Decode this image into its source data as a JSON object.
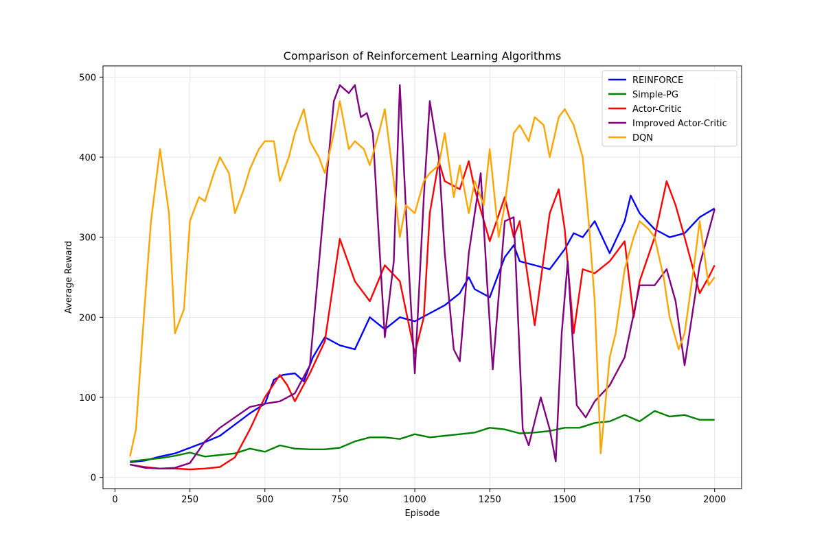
{
  "chart_data": {
    "type": "line",
    "title": "Comparison of Reinforcement Learning Algorithms",
    "xlabel": "Episode",
    "ylabel": "Average Reward",
    "xlim": [
      -40,
      2090
    ],
    "ylim": [
      -14,
      514
    ],
    "xticks": [
      0,
      250,
      500,
      750,
      1000,
      1250,
      1500,
      1750,
      2000
    ],
    "yticks": [
      0,
      100,
      200,
      300,
      400,
      500
    ],
    "grid": true,
    "legend_position": "top-right",
    "series": [
      {
        "name": "REINFORCE",
        "color": "#0000ff",
        "x": [
          50,
          100,
          150,
          200,
          250,
          300,
          350,
          400,
          450,
          500,
          530,
          560,
          600,
          630,
          660,
          700,
          750,
          800,
          850,
          900,
          950,
          1000,
          1050,
          1100,
          1150,
          1180,
          1200,
          1250,
          1300,
          1330,
          1350,
          1400,
          1450,
          1500,
          1530,
          1560,
          1600,
          1650,
          1700,
          1720,
          1750,
          1800,
          1850,
          1900,
          1950,
          2000
        ],
        "y": [
          19,
          21,
          26,
          30,
          37,
          44,
          52,
          66,
          80,
          92,
          122,
          128,
          130,
          120,
          150,
          175,
          165,
          160,
          200,
          185,
          200,
          195,
          205,
          215,
          230,
          250,
          235,
          225,
          275,
          290,
          270,
          265,
          260,
          285,
          305,
          300,
          320,
          280,
          320,
          352,
          330,
          310,
          300,
          305,
          325,
          336
        ]
      },
      {
        "name": "Simple-PG",
        "color": "#008000",
        "x": [
          50,
          100,
          150,
          200,
          250,
          300,
          350,
          400,
          450,
          500,
          550,
          600,
          650,
          700,
          750,
          800,
          850,
          900,
          950,
          1000,
          1050,
          1100,
          1150,
          1200,
          1250,
          1300,
          1350,
          1400,
          1450,
          1500,
          1550,
          1600,
          1650,
          1700,
          1750,
          1800,
          1850,
          1900,
          1950,
          2000
        ],
        "y": [
          20,
          22,
          24,
          27,
          31,
          26,
          28,
          30,
          36,
          32,
          40,
          36,
          35,
          35,
          37,
          45,
          50,
          50,
          48,
          54,
          50,
          52,
          54,
          56,
          62,
          60,
          55,
          56,
          58,
          62,
          62,
          68,
          70,
          78,
          70,
          83,
          76,
          78,
          72,
          72
        ]
      },
      {
        "name": "Actor-Critic",
        "color": "#ff0000",
        "x": [
          50,
          100,
          150,
          200,
          250,
          300,
          350,
          400,
          450,
          500,
          550,
          575,
          600,
          650,
          700,
          750,
          800,
          850,
          900,
          950,
          1000,
          1030,
          1050,
          1080,
          1100,
          1150,
          1180,
          1200,
          1250,
          1300,
          1330,
          1350,
          1400,
          1450,
          1480,
          1500,
          1530,
          1560,
          1600,
          1650,
          1700,
          1730,
          1750,
          1800,
          1840,
          1870,
          1900,
          1950,
          1980,
          2000
        ],
        "y": [
          16,
          13,
          11,
          11,
          10,
          11,
          13,
          25,
          60,
          100,
          128,
          115,
          95,
          130,
          170,
          298,
          245,
          220,
          265,
          245,
          155,
          200,
          330,
          395,
          370,
          360,
          395,
          360,
          295,
          350,
          300,
          320,
          190,
          330,
          360,
          310,
          180,
          260,
          255,
          270,
          295,
          200,
          245,
          300,
          370,
          340,
          300,
          230,
          250,
          265
        ]
      },
      {
        "name": "Improved Actor-Critic",
        "color": "#800080",
        "x": [
          50,
          100,
          150,
          200,
          250,
          300,
          350,
          400,
          450,
          500,
          550,
          600,
          650,
          700,
          730,
          750,
          780,
          800,
          820,
          840,
          860,
          880,
          900,
          930,
          950,
          980,
          1000,
          1030,
          1050,
          1080,
          1100,
          1130,
          1150,
          1180,
          1220,
          1240,
          1260,
          1300,
          1330,
          1360,
          1380,
          1420,
          1450,
          1470,
          1490,
          1510,
          1540,
          1570,
          1600,
          1650,
          1700,
          1750,
          1800,
          1840,
          1870,
          1900,
          1950,
          2000
        ],
        "y": [
          16,
          12,
          11,
          12,
          18,
          45,
          62,
          75,
          88,
          92,
          95,
          105,
          140,
          350,
          470,
          490,
          480,
          490,
          450,
          455,
          430,
          300,
          175,
          270,
          490,
          260,
          130,
          350,
          470,
          400,
          280,
          160,
          145,
          280,
          380,
          250,
          135,
          320,
          325,
          60,
          40,
          100,
          60,
          20,
          180,
          270,
          90,
          75,
          95,
          115,
          150,
          240,
          240,
          260,
          220,
          140,
          265,
          335
        ]
      },
      {
        "name": "DQN",
        "color": "#ffa500",
        "x": [
          50,
          70,
          100,
          120,
          150,
          180,
          200,
          230,
          250,
          280,
          300,
          330,
          350,
          380,
          400,
          430,
          450,
          480,
          500,
          530,
          550,
          580,
          600,
          630,
          650,
          680,
          700,
          730,
          750,
          780,
          800,
          830,
          850,
          880,
          900,
          930,
          950,
          970,
          1000,
          1030,
          1050,
          1080,
          1100,
          1130,
          1150,
          1180,
          1200,
          1230,
          1250,
          1280,
          1300,
          1330,
          1350,
          1380,
          1400,
          1430,
          1450,
          1480,
          1500,
          1530,
          1560,
          1580,
          1600,
          1620,
          1650,
          1670,
          1700,
          1730,
          1750,
          1780,
          1800,
          1830,
          1850,
          1880,
          1900,
          1930,
          1950,
          1980,
          2000
        ],
        "y": [
          26,
          60,
          220,
          320,
          410,
          330,
          180,
          210,
          320,
          350,
          345,
          380,
          400,
          380,
          330,
          360,
          385,
          410,
          420,
          420,
          370,
          400,
          430,
          460,
          420,
          400,
          380,
          430,
          470,
          410,
          420,
          410,
          390,
          430,
          460,
          370,
          300,
          340,
          330,
          370,
          380,
          390,
          430,
          350,
          390,
          330,
          370,
          340,
          410,
          300,
          340,
          430,
          440,
          420,
          450,
          440,
          400,
          450,
          460,
          440,
          400,
          320,
          220,
          30,
          150,
          180,
          260,
          300,
          320,
          310,
          300,
          250,
          200,
          160,
          180,
          260,
          320,
          240,
          250
        ]
      }
    ]
  }
}
